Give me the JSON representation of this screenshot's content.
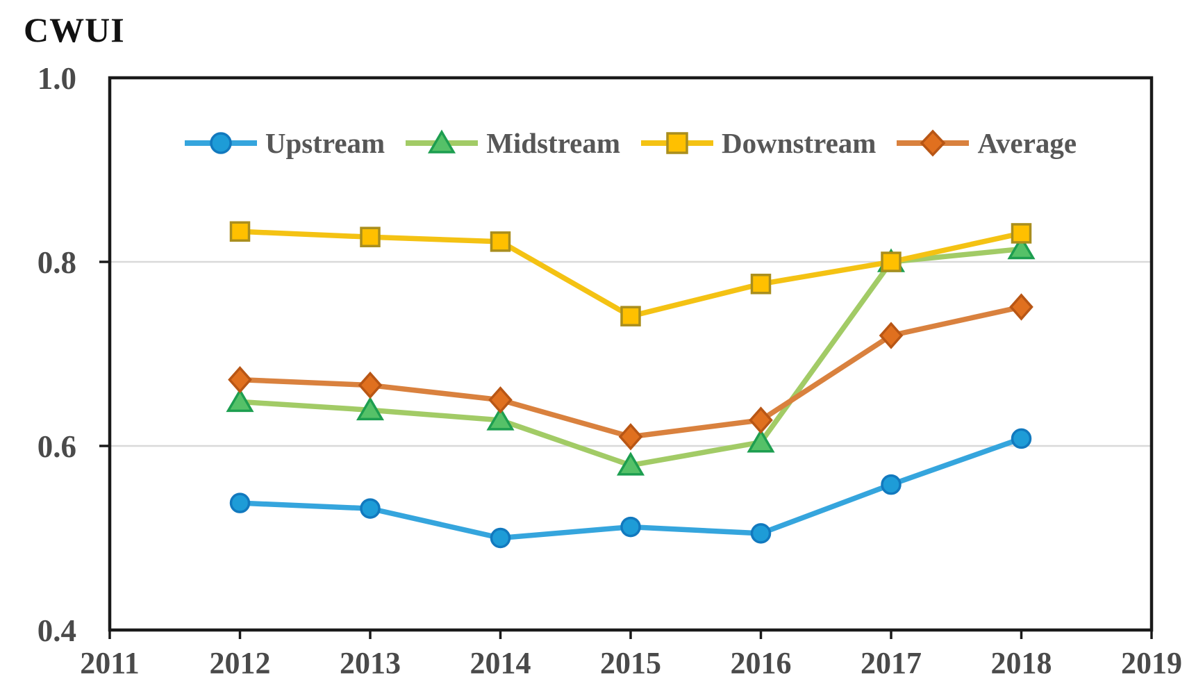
{
  "chart_data": {
    "type": "line",
    "title": "CWUI",
    "x": [
      2012,
      2013,
      2014,
      2015,
      2016,
      2017,
      2018
    ],
    "xlim": [
      2011,
      2019
    ],
    "ylim": [
      0.4,
      1.0
    ],
    "xticks": [
      2011,
      2012,
      2013,
      2014,
      2015,
      2016,
      2017,
      2018,
      2019
    ],
    "yticks": [
      {
        "label": "1.0",
        "value": 1.0
      },
      {
        "label": "0.8",
        "value": 0.8
      },
      {
        "label": "0.6",
        "value": 0.6
      },
      {
        "label": "0.4",
        "value": 0.4
      }
    ],
    "gridline_values": [
      0.8,
      0.6
    ],
    "grid": "horizontal-only",
    "legend_position": "top-inside",
    "series": [
      {
        "name": "Upstream",
        "marker": "circle",
        "line_color": "#35A5DD",
        "marker_fill": "#1E9CD7",
        "marker_stroke": "#1279BE",
        "values": [
          0.538,
          0.532,
          0.5,
          0.512,
          0.505,
          0.558,
          0.608
        ]
      },
      {
        "name": "Midstream",
        "marker": "triangle",
        "line_color": "#A2CB66",
        "marker_fill": "#55C168",
        "marker_stroke": "#1D9E50",
        "values": [
          0.648,
          0.639,
          0.628,
          0.579,
          0.604,
          0.8,
          0.814
        ]
      },
      {
        "name": "Downstream",
        "marker": "square",
        "line_color": "#F4C213",
        "marker_fill": "#FFC000",
        "marker_stroke": "#A98E1E",
        "values": [
          0.833,
          0.827,
          0.822,
          0.741,
          0.776,
          0.8,
          0.831
        ]
      },
      {
        "name": "Average",
        "marker": "diamond",
        "line_color": "#D9813E",
        "marker_fill": "#E0701F",
        "marker_stroke": "#B85615",
        "values": [
          0.672,
          0.666,
          0.65,
          0.61,
          0.628,
          0.72,
          0.751
        ]
      }
    ],
    "colors": {
      "axis": "#1a1a1a",
      "gridline": "#d9d9d9",
      "tick_label": "#4a4a4a",
      "legend_text": "#575757",
      "background": "#ffffff"
    }
  }
}
